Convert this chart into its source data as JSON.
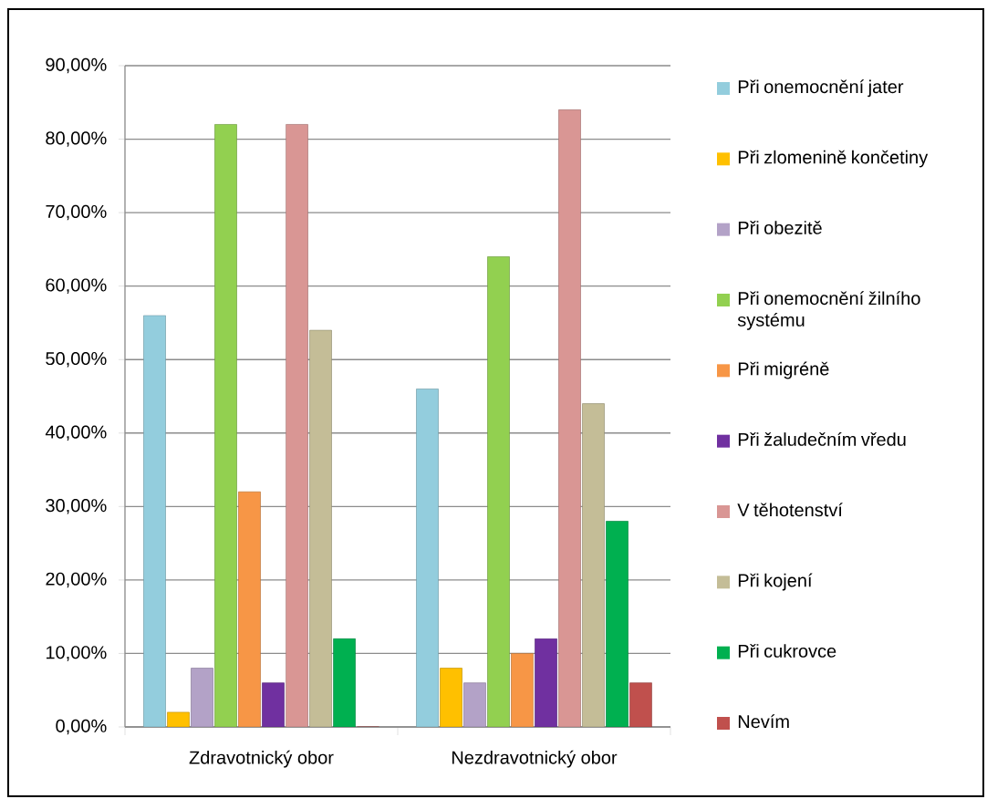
{
  "chart_data": {
    "type": "bar",
    "categories": [
      "Zdravotnický obor",
      "Nezdravotnický obor"
    ],
    "series": [
      {
        "name": "Při onemocnění jater",
        "color": "#93cddd",
        "values": [
          56,
          46
        ]
      },
      {
        "name": "Při zlomenině končetiny",
        "color": "#ffc000",
        "values": [
          2,
          8
        ]
      },
      {
        "name": "Při obezitě",
        "color": "#b3a2c7",
        "values": [
          8,
          6
        ]
      },
      {
        "name": "Při onemocnění žilního systému",
        "color": "#92d050",
        "values": [
          82,
          64
        ]
      },
      {
        "name": "Při migréně",
        "color": "#f79646",
        "values": [
          32,
          10
        ]
      },
      {
        "name": "Při žaludečním vředu",
        "color": "#7030a0",
        "values": [
          6,
          12
        ]
      },
      {
        "name": "V těhotenství",
        "color": "#d99694",
        "values": [
          82,
          84
        ]
      },
      {
        "name": "Při kojení",
        "color": "#c4bd97",
        "values": [
          54,
          44
        ]
      },
      {
        "name": "Při cukrovce",
        "color": "#00b050",
        "values": [
          12,
          28
        ]
      },
      {
        "name": "Nevím",
        "color": "#c0504d",
        "values": [
          0,
          6
        ]
      }
    ],
    "ylim": [
      0,
      90
    ],
    "yticks": [
      {
        "value": 0,
        "label": "0,00%"
      },
      {
        "value": 10,
        "label": "10,00%"
      },
      {
        "value": 20,
        "label": "20,00%"
      },
      {
        "value": 30,
        "label": "30,00%"
      },
      {
        "value": 40,
        "label": "40,00%"
      },
      {
        "value": 50,
        "label": "50,00%"
      },
      {
        "value": 60,
        "label": "60,00%"
      },
      {
        "value": 70,
        "label": "70,00%"
      },
      {
        "value": 80,
        "label": "80,00%"
      },
      {
        "value": 90,
        "label": "90,00%"
      }
    ],
    "grid": "y",
    "legend": "right"
  }
}
